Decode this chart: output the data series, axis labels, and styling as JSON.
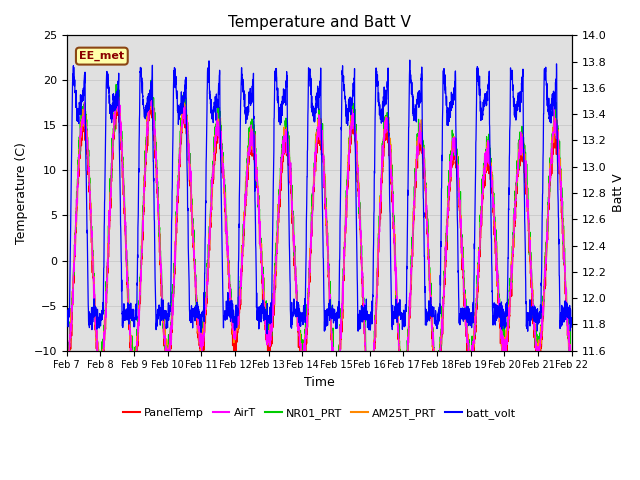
{
  "title": "Temperature and Batt V",
  "xlabel": "Time",
  "ylabel_left": "Temperature (C)",
  "ylabel_right": "Batt V",
  "annotation": "EE_met",
  "ylim_left": [
    -10,
    25
  ],
  "ylim_right": [
    11.6,
    14.0
  ],
  "x_tick_labels": [
    "Feb 7",
    "Feb 8",
    "Feb 9",
    "Feb 10",
    "Feb 11",
    "Feb 12",
    "Feb 13",
    "Feb 14",
    "Feb 15",
    "Feb 16",
    "Feb 17",
    "Feb 18",
    "Feb 19",
    "Feb 20",
    "Feb 21",
    "Feb 22"
  ],
  "legend_entries": [
    "PanelTemp",
    "AirT",
    "NR01_PRT",
    "AM25T_PRT",
    "batt_volt"
  ],
  "panel_color": "#ff0000",
  "air_color": "#ff00ff",
  "nr01_color": "#00cc00",
  "am25t_color": "#ff8800",
  "batt_color": "#0000ff",
  "grid_color": "#cccccc",
  "bg_color": "#e0e0e0",
  "num_points": 3000,
  "num_days": 15
}
